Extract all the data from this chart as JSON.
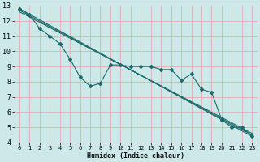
{
  "xlabel": "Humidex (Indice chaleur)",
  "bg_color": "#cce8e8",
  "grid_color": "#e8a0a0",
  "line_color": "#1a6b6b",
  "xlim": [
    -0.5,
    23.5
  ],
  "ylim": [
    4,
    13
  ],
  "xticks": [
    0,
    1,
    2,
    3,
    4,
    5,
    6,
    7,
    8,
    9,
    10,
    11,
    12,
    13,
    14,
    15,
    16,
    17,
    18,
    19,
    20,
    21,
    22,
    23
  ],
  "yticks": [
    4,
    5,
    6,
    7,
    8,
    9,
    10,
    11,
    12,
    13
  ],
  "series1_x": [
    0,
    1,
    2,
    3,
    4,
    5,
    6,
    7,
    8,
    9,
    10,
    11,
    12,
    13,
    14,
    15,
    16,
    17,
    18,
    19,
    20,
    21,
    22,
    23
  ],
  "series1_y": [
    12.8,
    12.4,
    11.5,
    11.0,
    10.5,
    9.5,
    8.3,
    7.7,
    7.9,
    9.1,
    9.1,
    9.0,
    9.0,
    9.0,
    8.8,
    8.8,
    8.1,
    8.5,
    7.5,
    7.3,
    5.5,
    5.0,
    5.0,
    4.4
  ],
  "straight_line1_x": [
    0,
    23
  ],
  "straight_line1_y": [
    12.8,
    4.4
  ],
  "straight_line2_x": [
    0,
    23
  ],
  "straight_line2_y": [
    12.6,
    4.6
  ],
  "straight_line3_x": [
    0,
    23
  ],
  "straight_line3_y": [
    12.7,
    4.5
  ],
  "xlabel_fontsize": 6,
  "tick_fontsize": 5,
  "line_width": 0.8,
  "marker_size": 2.0
}
